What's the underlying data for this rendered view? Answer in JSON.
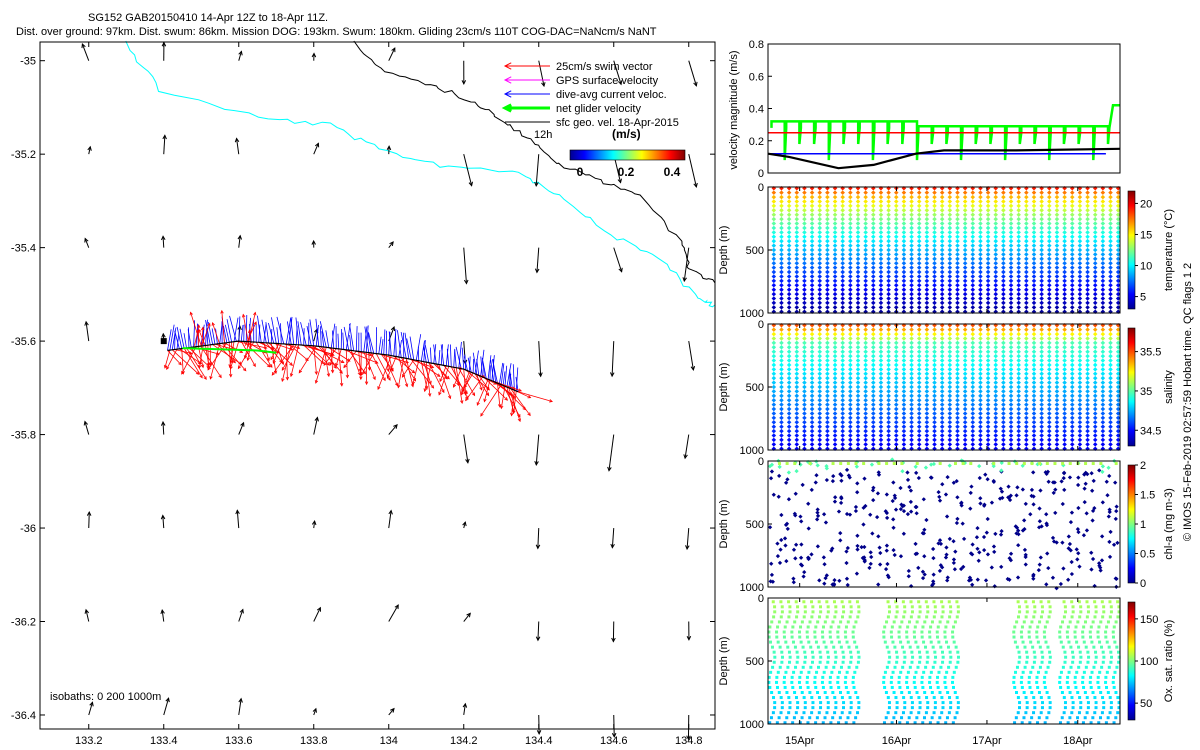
{
  "header": {
    "title_line1": "SG152 GAB20150410 14-Apr 12Z to 18-Apr 11Z.",
    "title_line2": "Dist. over ground: 97km. Dist. swum: 86km. Mission DOG: 193km. Swum: 180km. Gliding 23cm/s 110T COG-DAC=NaNcm/s NaNT"
  },
  "footer": {
    "credit": "© IMOS 15-Feb-2019 02:57:59 Hobart time. QC flags 1  2"
  },
  "colors": {
    "swim": "#ff0000",
    "gps": "#ff00ff",
    "dac": "#0000ff",
    "net": "#00ff00",
    "geo": "#000000",
    "isobath": "#00ffff"
  },
  "map": {
    "chart_type": "quiver-map",
    "xlim": [
      133.07,
      134.87
    ],
    "ylim": [
      -36.43,
      -34.96
    ],
    "x_ticks": [
      133.2,
      133.4,
      133.6,
      133.8,
      134,
      134.2,
      134.4,
      134.6,
      134.8
    ],
    "x_tick_labels": [
      "133.2",
      "133.4",
      "133.6",
      "133.8",
      "134",
      "134.2",
      "134.4",
      "134.6",
      "134.8"
    ],
    "y_ticks": [
      -35,
      -35.2,
      -35.4,
      -35.6,
      -35.8,
      -36,
      -36.2,
      -36.4
    ],
    "y_tick_labels": [
      "-35",
      "-35.2",
      "-35.4",
      "-35.6",
      "-35.8",
      "-36",
      "-36.2",
      "-36.4"
    ],
    "isobath_label": "isobaths: 0   200  1000m",
    "legend": [
      {
        "label": "25cm/s swim vector",
        "key": "swim"
      },
      {
        "label": "GPS surface velocity",
        "key": "gps"
      },
      {
        "label": "dive-avg current veloc.",
        "key": "dac"
      },
      {
        "label": "net glider velocity",
        "key": "net"
      },
      {
        "label": "sfc geo. vel. 18-Apr-2015",
        "key": "geo"
      }
    ],
    "twelve_h_label": "12h",
    "colorbar": {
      "title": "(m/s)",
      "tick_labels": [
        "0",
        "0.2",
        "0.4"
      ],
      "range": [
        0,
        0.5
      ]
    },
    "track": [
      [
        133.41,
        -35.62
      ],
      [
        133.6,
        -35.6
      ],
      [
        133.8,
        -35.61
      ],
      [
        134.0,
        -35.63
      ],
      [
        134.2,
        -35.66
      ],
      [
        134.35,
        -35.71
      ]
    ]
  },
  "velocity_panel": {
    "ylabel": "velocity magnitude (m/s)",
    "ylim": [
      0,
      0.8
    ],
    "y_ticks": [
      0,
      0.2,
      0.4,
      0.6,
      0.8
    ],
    "y_tick_labels": [
      "0",
      "0.2",
      "0.4",
      "0.6",
      "0.8"
    ],
    "series": [
      {
        "name": "swim",
        "x": [
          0,
          1
        ],
        "y": [
          0.25,
          0.25
        ]
      },
      {
        "name": "dive-avg",
        "x": [
          0,
          0.96
        ],
        "y": [
          0.12,
          0.12
        ]
      },
      {
        "name": "geostrophic",
        "x": [
          0,
          0.06,
          0.2,
          0.3,
          0.42,
          0.5,
          0.7,
          1
        ],
        "y": [
          0.12,
          0.1,
          0.03,
          0.05,
          0.12,
          0.14,
          0.14,
          0.15
        ]
      }
    ]
  },
  "profile_panels": [
    {
      "id": "temperature",
      "cbar_label": "temperature (°C)",
      "cbar_ticks": [
        5,
        10,
        15,
        20
      ],
      "cbar_tick_labels": [
        "5",
        "10",
        "15",
        "20"
      ],
      "cbar_range": [
        3,
        22
      ],
      "kind": "temp"
    },
    {
      "id": "salinity",
      "cbar_label": "salinity",
      "cbar_ticks": [
        34.5,
        35,
        35.5
      ],
      "cbar_tick_labels": [
        "34.5",
        "35",
        "35.5"
      ],
      "cbar_range": [
        34.3,
        35.8
      ],
      "kind": "sal"
    },
    {
      "id": "chla",
      "cbar_label": "chl-a (mg m-3)",
      "cbar_ticks": [
        0,
        0.5,
        1,
        1.5,
        2
      ],
      "cbar_tick_labels": [
        "0",
        "0.5",
        "1",
        "1.5",
        "2"
      ],
      "cbar_range": [
        0,
        2
      ],
      "kind": "chl"
    },
    {
      "id": "oxygen",
      "cbar_label": "Ox. sat. ratio (%)",
      "cbar_ticks": [
        50,
        100,
        150
      ],
      "cbar_tick_labels": [
        "50",
        "100",
        "150"
      ],
      "cbar_range": [
        30,
        170
      ],
      "kind": "ox"
    }
  ],
  "profile_axes": {
    "ylabel": "Depth (m)",
    "depth_ticks": [
      0,
      500,
      1000
    ],
    "depth_tick_labels": [
      "0",
      "500",
      "1000"
    ],
    "time_labels": [
      "15Apr",
      "16Apr",
      "17Apr",
      "18Apr"
    ]
  }
}
